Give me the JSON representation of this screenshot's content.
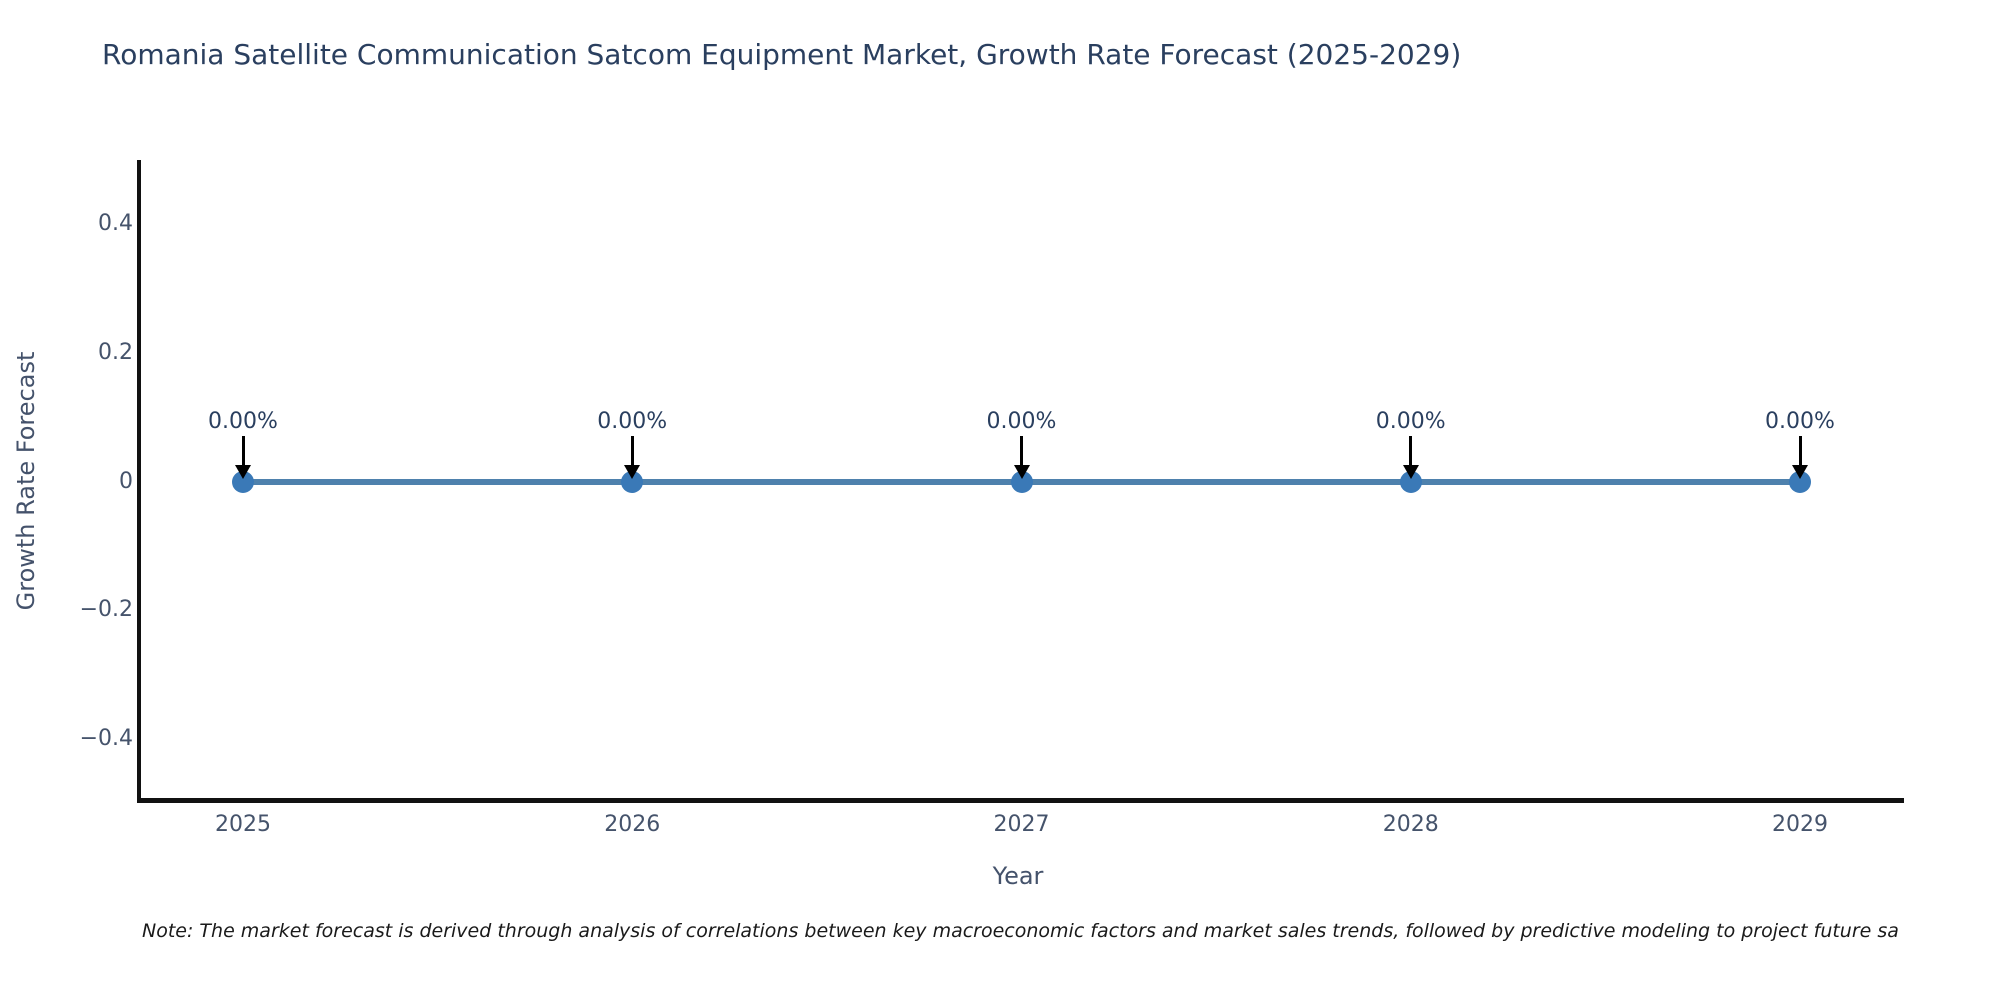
{
  "note": "Note: The market forecast is derived through analysis of correlations between key macroeconomic factors and market sales trends, followed by predictive modeling to project future sa",
  "colors": {
    "title_text": "#2a3f5f",
    "tick_text": "#45536b",
    "axis_line": "#111111",
    "note_text": "#1a1a1a"
  },
  "chart_data": {
    "type": "line",
    "title": "Romania Satellite Communication Satcom Equipment Market, Growth Rate Forecast (2025-2029)",
    "xlabel": "Year",
    "ylabel": "Growth Rate Forecast",
    "categories": [
      "2025",
      "2026",
      "2027",
      "2028",
      "2029"
    ],
    "series": [
      {
        "name": "Growth Rate Forecast",
        "values": [
          0,
          0,
          0,
          0,
          0
        ]
      }
    ],
    "point_labels": [
      "0.00%",
      "0.00%",
      "0.00%",
      "0.00%",
      "0.00%"
    ],
    "yticks": [
      {
        "value": 0.4,
        "label": "0.4"
      },
      {
        "value": 0.2,
        "label": "0.2"
      },
      {
        "value": 0,
        "label": "0"
      },
      {
        "value": -0.2,
        "label": "−0.2"
      },
      {
        "value": -0.4,
        "label": "−0.4"
      }
    ],
    "ylim": [
      -0.5,
      0.5
    ],
    "grid": false,
    "legend_position": "none",
    "line_color": "#4e81ad",
    "marker_color": "#3a79b7",
    "arrow_color": "#000000"
  }
}
